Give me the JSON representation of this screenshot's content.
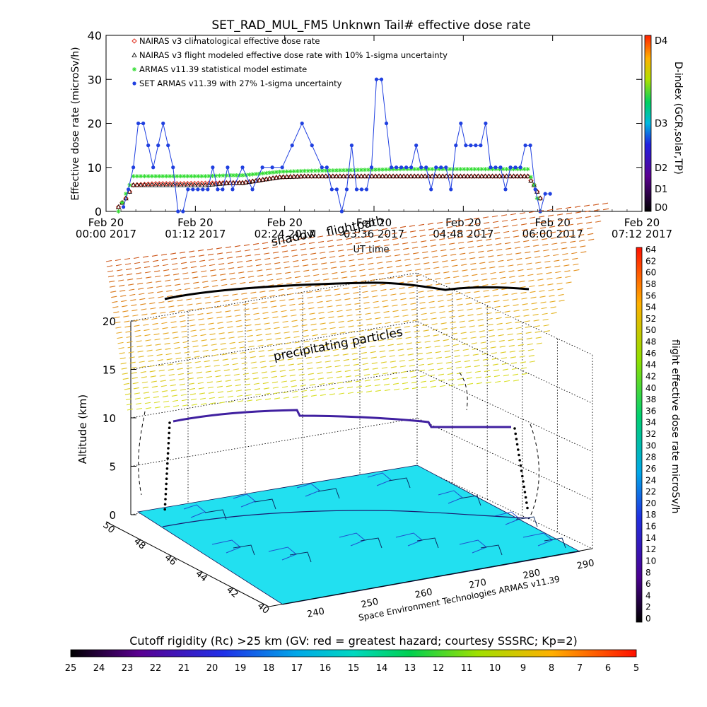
{
  "chart_data": [
    {
      "type": "scatter",
      "title": "SET_RAD_MUL_FM5 Unknwn Tail#  effective dose rate",
      "ylabel": "Effective dose rate (microSv/h)",
      "xlabel": "UT time",
      "ylim": [
        0,
        40
      ],
      "yticks": [
        "0",
        "10",
        "20",
        "30",
        "40"
      ],
      "x_unit": "minutes since Feb 20 00:00",
      "xticks": [
        {
          "top": "Feb 20",
          "bottom": "00:00 2017",
          "t": 0
        },
        {
          "top": "Feb 20",
          "bottom": "01:12 2017",
          "t": 72
        },
        {
          "top": "Feb 20",
          "bottom": "02:24 2017",
          "t": 144
        },
        {
          "top": "Feb 20",
          "bottom": "03:36 2017",
          "t": 216
        },
        {
          "top": "Feb 20",
          "bottom": "04:48 2017",
          "t": 288
        },
        {
          "top": "Feb 20",
          "bottom": "06:00 2017",
          "t": 360
        },
        {
          "top": "Feb 20",
          "bottom": "07:12 2017",
          "t": 432
        }
      ],
      "xlim": [
        0,
        432
      ],
      "legend_position": "top-left",
      "legend": [
        {
          "label": "NAIRAS v3 climatological effective dose rate",
          "color": "#e03020",
          "marker": "diamond"
        },
        {
          "label": "NAIRAS v3 flight modeled effective dose rate with 10% 1-sigma uncertainty",
          "color": "#000000",
          "marker": "triangle"
        },
        {
          "label": "ARMAS v11.39 statistical model estimate",
          "color": "#33dd33",
          "marker": "star"
        },
        {
          "label": "SET ARMAS v11.39 with 27% 1-sigma uncertainty",
          "color": "#2040e0",
          "marker": "circle"
        }
      ],
      "series": [
        {
          "name": "NAIRAS v3 climatological effective dose rate",
          "x": [
            10,
            16,
            22,
            40,
            60,
            80,
            100,
            110,
            140,
            160,
            180,
            200,
            220,
            240,
            260,
            280,
            300,
            320,
            340,
            345,
            350
          ],
          "values": [
            1,
            3,
            6,
            6.3,
            6.3,
            6.4,
            6.5,
            6.5,
            7.8,
            8,
            8,
            8,
            8,
            8,
            8,
            8,
            8,
            8,
            8,
            6,
            3
          ]
        },
        {
          "name": "NAIRAS v3 flight modeled effective dose rate with 10% 1-sigma uncertainty",
          "x": [
            10,
            16,
            22,
            40,
            60,
            80,
            100,
            110,
            140,
            160,
            180,
            200,
            220,
            240,
            260,
            280,
            300,
            320,
            340,
            345,
            350
          ],
          "values": [
            1,
            3,
            6,
            6,
            6,
            6,
            6.5,
            6.5,
            7.8,
            8,
            8,
            8,
            8,
            8,
            8,
            8,
            8,
            8,
            8,
            6,
            3
          ]
        },
        {
          "name": "ARMAS v11.39 statistical model estimate",
          "x": [
            10,
            16,
            22,
            40,
            60,
            80,
            100,
            110,
            140,
            160,
            180,
            200,
            220,
            240,
            260,
            280,
            300,
            320,
            340,
            345,
            350
          ],
          "values": [
            0,
            4,
            8,
            8,
            8,
            8,
            8.2,
            8.2,
            9,
            9.2,
            9.3,
            9.4,
            9.5,
            9.6,
            9.6,
            9.6,
            9.6,
            9.6,
            9.6,
            6,
            0
          ]
        },
        {
          "name": "SET ARMAS v11.39 with 27% 1-sigma uncertainty",
          "x": [
            14,
            18,
            22,
            26,
            30,
            34,
            38,
            42,
            46,
            50,
            54,
            58,
            62,
            66,
            70,
            74,
            78,
            82,
            86,
            90,
            94,
            98,
            102,
            110,
            118,
            126,
            134,
            142,
            150,
            158,
            166,
            174,
            178,
            182,
            186,
            190,
            194,
            198,
            202,
            206,
            210,
            214,
            218,
            222,
            226,
            230,
            234,
            238,
            242,
            246,
            250,
            254,
            258,
            262,
            266,
            270,
            274,
            278,
            282,
            286,
            290,
            294,
            298,
            302,
            306,
            310,
            314,
            318,
            322,
            326,
            330,
            334,
            338,
            342,
            346,
            350,
            354,
            358
          ],
          "values": [
            1,
            5,
            10,
            20,
            20,
            15,
            10,
            15,
            20,
            15,
            10,
            0,
            0,
            5,
            5,
            5,
            5,
            5,
            10,
            5,
            5,
            10,
            5,
            10,
            5,
            10,
            10,
            10,
            15,
            20,
            15,
            10,
            10,
            5,
            5,
            0,
            5,
            15,
            5,
            5,
            5,
            10,
            30,
            30,
            20,
            10,
            10,
            10,
            10,
            10,
            15,
            10,
            10,
            5,
            10,
            10,
            10,
            5,
            15,
            20,
            15,
            15,
            15,
            15,
            20,
            10,
            10,
            10,
            5,
            10,
            10,
            10,
            15,
            15,
            5,
            0,
            4,
            4
          ]
        }
      ],
      "colorbar": {
        "title": "D-index (GCR,solar,TP)",
        "labels": [
          "D0",
          "D1",
          "D2",
          "D3",
          "D4"
        ]
      }
    },
    {
      "type": "3d-trajectory",
      "overlay_text": [
        "shadow",
        "flightpath",
        "precipitating particles"
      ],
      "zlabel": "Altitude (km)",
      "zticks": [
        "0",
        "5",
        "10",
        "15",
        "20"
      ],
      "xticks": [
        "240",
        "250",
        "260",
        "270",
        "280",
        "290"
      ],
      "yticks": [
        "40",
        "42",
        "44",
        "46",
        "48",
        "50"
      ],
      "credit": "Space Environment Technologies ARMAS v11.39",
      "flight_altitude_km": [
        10.0,
        10.5,
        10.8,
        11.0,
        11.0,
        11.0,
        10.8,
        10.5,
        10.2,
        9.8,
        9.6
      ],
      "dose_colorbar": {
        "title": "flight effective dose rate microSv/h",
        "labels": [
          "0",
          "2",
          "4",
          "6",
          "8",
          "10",
          "12",
          "14",
          "16",
          "18",
          "20",
          "22",
          "24",
          "26",
          "28",
          "30",
          "32",
          "34",
          "36",
          "38",
          "40",
          "42",
          "44",
          "46",
          "48",
          "50",
          "52",
          "54",
          "56",
          "58",
          "60",
          "62",
          "64"
        ]
      }
    },
    {
      "type": "colorbar",
      "title": "Cutoff rigidity (Rc) >25 km (GV: red = greatest hazard; courtesy SSSRC; Kp=2)",
      "labels": [
        "25",
        "24",
        "23",
        "22",
        "21",
        "20",
        "19",
        "18",
        "17",
        "16",
        "15",
        "14",
        "13",
        "12",
        "11",
        "10",
        "9",
        "8",
        "7",
        "6",
        "5"
      ]
    }
  ]
}
